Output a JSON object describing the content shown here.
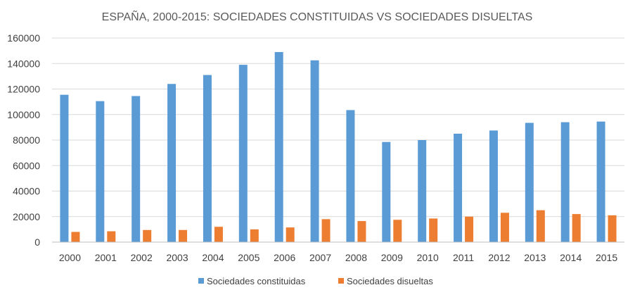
{
  "chart_data": {
    "type": "bar",
    "title": "ESPAÑA, 2000-2015: SOCIEDADES CONSTITUIDAS VS SOCIEDADES DISUELTAS",
    "xlabel": "",
    "ylabel": "",
    "ylim": [
      0,
      160000
    ],
    "yticks": [
      "0",
      "20000",
      "40000",
      "60000",
      "80000",
      "100000",
      "120000",
      "140000",
      "160000"
    ],
    "categories": [
      "2000",
      "2001",
      "2002",
      "2003",
      "2004",
      "2005",
      "2006",
      "2007",
      "2008",
      "2009",
      "2010",
      "2011",
      "2012",
      "2013",
      "2014",
      "2015"
    ],
    "series": [
      {
        "name": "Sociedades constituidas",
        "color": "#5b9bd5",
        "values": [
          115500,
          110500,
          114500,
          124000,
          131000,
          139000,
          149000,
          142500,
          103500,
          78500,
          80000,
          85000,
          87500,
          93500,
          94000,
          94500
        ]
      },
      {
        "name": "Sociedades disueltas",
        "color": "#ed7d31",
        "values": [
          8000,
          8500,
          9500,
          9500,
          12000,
          10000,
          11500,
          18000,
          16500,
          17500,
          18500,
          20000,
          23000,
          25000,
          22000,
          21000
        ]
      }
    ],
    "legend": "bottom",
    "grid": true
  }
}
